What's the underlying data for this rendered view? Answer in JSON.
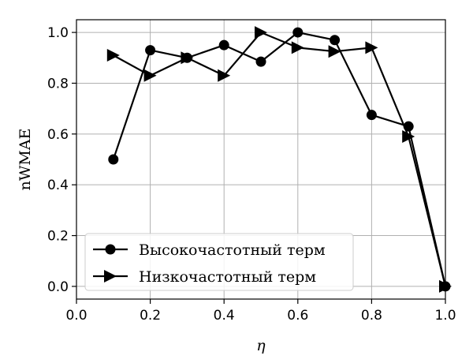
{
  "chart_data": {
    "type": "line",
    "title": "",
    "xlabel": "η",
    "ylabel": "nWMAE",
    "xlim": [
      0.0,
      1.0
    ],
    "ylim": [
      -0.05,
      1.05
    ],
    "xticks": [
      0.0,
      0.2,
      0.4,
      0.6,
      0.8,
      1.0
    ],
    "xtick_labels": [
      "0.0",
      "0.2",
      "0.4",
      "0.6",
      "0.8",
      "1.0"
    ],
    "yticks": [
      0.0,
      0.2,
      0.4,
      0.6,
      0.8,
      1.0
    ],
    "ytick_labels": [
      "0.0",
      "0.2",
      "0.4",
      "0.6",
      "0.8",
      "1.0"
    ],
    "grid": true,
    "legend_position": "lower-left",
    "series": [
      {
        "name": "Высокочастотный терм",
        "marker": "circle",
        "color": "#000000",
        "x": [
          0.1,
          0.2,
          0.3,
          0.4,
          0.5,
          0.6,
          0.7,
          0.8,
          0.9,
          1.0
        ],
        "y": [
          0.5,
          0.93,
          0.9,
          0.95,
          0.885,
          1.0,
          0.97,
          0.675,
          0.63,
          0.0
        ]
      },
      {
        "name": "Низкочастотный терм",
        "marker": "triangle-right",
        "color": "#000000",
        "x": [
          0.1,
          0.2,
          0.3,
          0.4,
          0.5,
          0.6,
          0.7,
          0.8,
          0.9,
          1.0
        ],
        "y": [
          0.91,
          0.83,
          0.9,
          0.83,
          1.0,
          0.94,
          0.925,
          0.94,
          0.59,
          0.0
        ]
      }
    ]
  }
}
